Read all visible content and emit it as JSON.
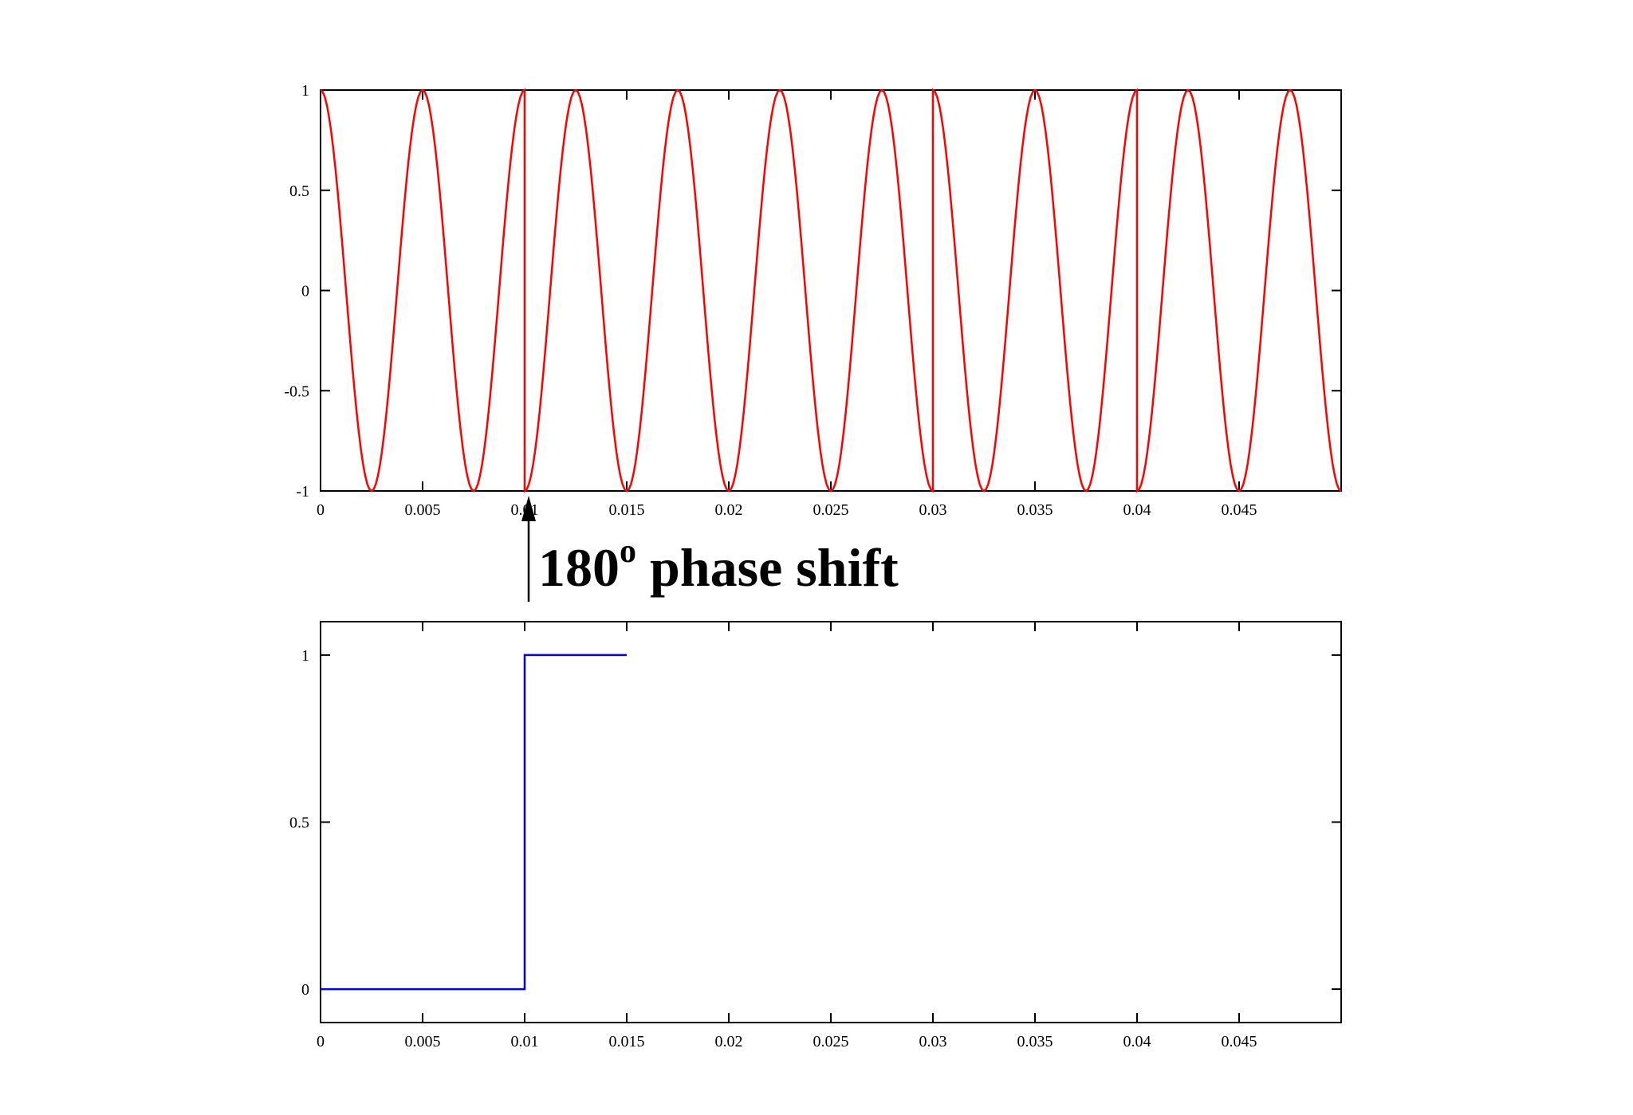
{
  "chart_data": [
    {
      "type": "line",
      "title": "",
      "xlabel": "",
      "ylabel": "",
      "xlim": [
        0,
        0.05
      ],
      "ylim": [
        -1,
        1
      ],
      "grid": false,
      "x_ticks": [
        "0",
        "0.005",
        "0.01",
        "0.015",
        "0.02",
        "0.025",
        "0.03",
        "0.035",
        "0.04",
        "0.045"
      ],
      "x_tick_values": [
        0,
        0.005,
        0.01,
        0.015,
        0.02,
        0.025,
        0.03,
        0.035,
        0.04,
        0.045
      ],
      "y_ticks": [
        "1",
        "0.5",
        "0",
        "-0.5",
        "-1"
      ],
      "y_tick_values": [
        1,
        0.5,
        0,
        -0.5,
        -1
      ],
      "series": [
        {
          "color": "#ff0000",
          "x": [
            0,
            0.0025,
            0.005,
            0.0075,
            0.01,
            0.01,
            0.0125,
            0.015,
            0.0175,
            0.02,
            0.0225,
            0.025,
            0.0275,
            0.03,
            0.03,
            0.0325,
            0.035,
            0.0375,
            0.04,
            0.04,
            0.0425,
            0.045,
            0.0475,
            0.05
          ],
          "y": [
            1,
            -1,
            1,
            -1,
            1,
            -1,
            1,
            -1,
            1,
            -1,
            1,
            -1,
            1,
            -1,
            1,
            -1,
            1,
            -1,
            1,
            -1,
            1,
            -1,
            1,
            -1
          ]
        }
      ],
      "annotation": {
        "text": "180",
        "superscript": "o",
        "text_after": " phase shift",
        "x": 0.01
      }
    },
    {
      "type": "line",
      "title": "",
      "xlabel": "",
      "ylabel": "",
      "xlim": [
        0,
        0.05
      ],
      "ylim": [
        -0.1,
        1.1
      ],
      "grid": false,
      "x_ticks": [
        "0",
        "0.005",
        "0.01",
        "0.015",
        "0.02",
        "0.025",
        "0.03",
        "0.035",
        "0.04",
        "0.045"
      ],
      "x_tick_values": [
        0,
        0.005,
        0.01,
        0.015,
        0.02,
        0.025,
        0.03,
        0.035,
        0.04,
        0.045
      ],
      "y_ticks": [
        "1",
        "0.5",
        "0"
      ],
      "y_tick_values": [
        1,
        0.5,
        0
      ],
      "series": [
        {
          "color": "#0000ff",
          "x": [
            0,
            0.01,
            0.01,
            0.015
          ],
          "y": [
            0,
            0,
            1,
            1
          ]
        }
      ]
    }
  ]
}
